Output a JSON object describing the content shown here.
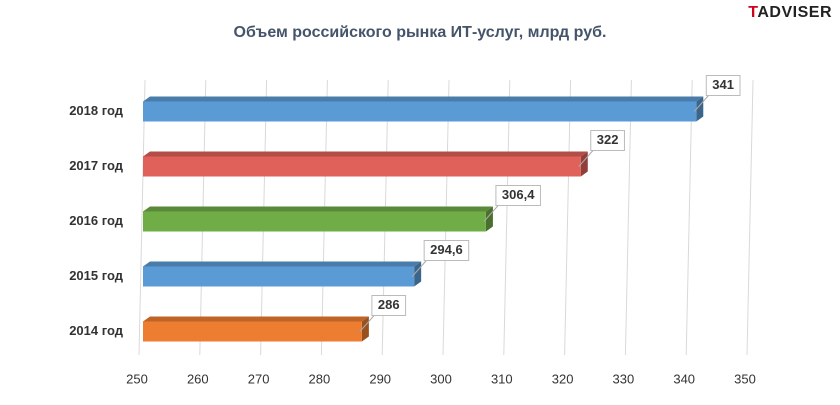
{
  "chart_data": {
    "type": "bar",
    "title": "Объем российского рынка ИТ-услуг,  млрд руб.",
    "brand": "TADVISER",
    "categories": [
      "2018 год",
      "2017 год",
      "2016 год",
      "2015 год",
      "2014 год"
    ],
    "values": [
      341,
      322,
      306.4,
      294.6,
      286
    ],
    "value_labels": [
      "341",
      "322",
      "306,4",
      "294,6",
      "286"
    ],
    "colors": [
      "#5b9bd5",
      "#e0605a",
      "#70ad47",
      "#5b9bd5",
      "#ed7d31"
    ],
    "xlim": [
      250,
      350
    ],
    "xticks": [
      250,
      260,
      270,
      280,
      290,
      300,
      310,
      320,
      330,
      340,
      350
    ],
    "grid": true
  }
}
